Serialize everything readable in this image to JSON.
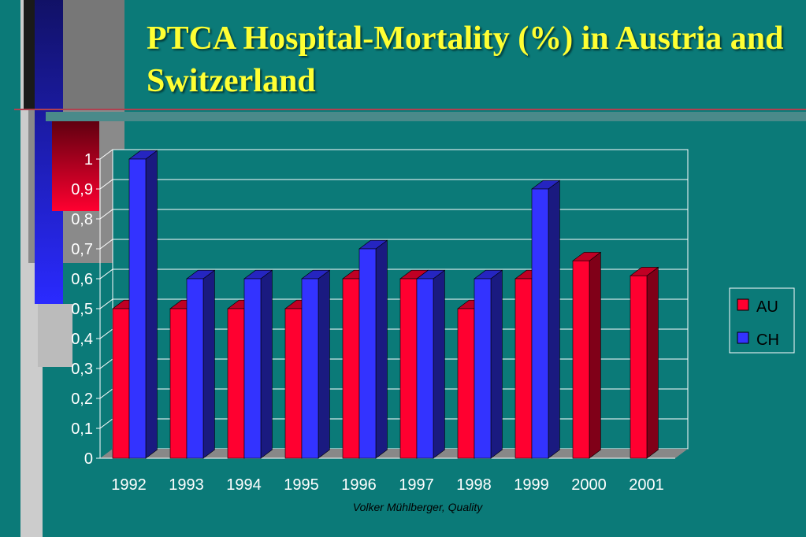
{
  "title": "PTCA Hospital-Mortality (%) in Austria and Switzerland",
  "footer": "Volker Mühlberger, Quality",
  "colors": {
    "background": "#0b7a78",
    "title": "#ffff33",
    "au": "#ff0030",
    "ch": "#3333ff"
  },
  "chart_data": {
    "type": "bar",
    "categories": [
      "1992",
      "1993",
      "1994",
      "1995",
      "1996",
      "1997",
      "1998",
      "1999",
      "2000",
      "2001"
    ],
    "series": [
      {
        "name": "AU",
        "values": [
          0.5,
          0.5,
          0.5,
          0.5,
          0.6,
          0.6,
          0.5,
          0.6,
          0.66,
          0.61
        ]
      },
      {
        "name": "CH",
        "values": [
          1.0,
          0.6,
          0.6,
          0.6,
          0.7,
          0.6,
          0.6,
          0.9,
          null,
          null
        ]
      }
    ],
    "yticks": [
      "0",
      "0,1",
      "0,2",
      "0,3",
      "0,4",
      "0,5",
      "0,6",
      "0,7",
      "0,8",
      "0,9",
      "1"
    ],
    "ylim": [
      0,
      1
    ],
    "grid": true,
    "legend": "right"
  }
}
